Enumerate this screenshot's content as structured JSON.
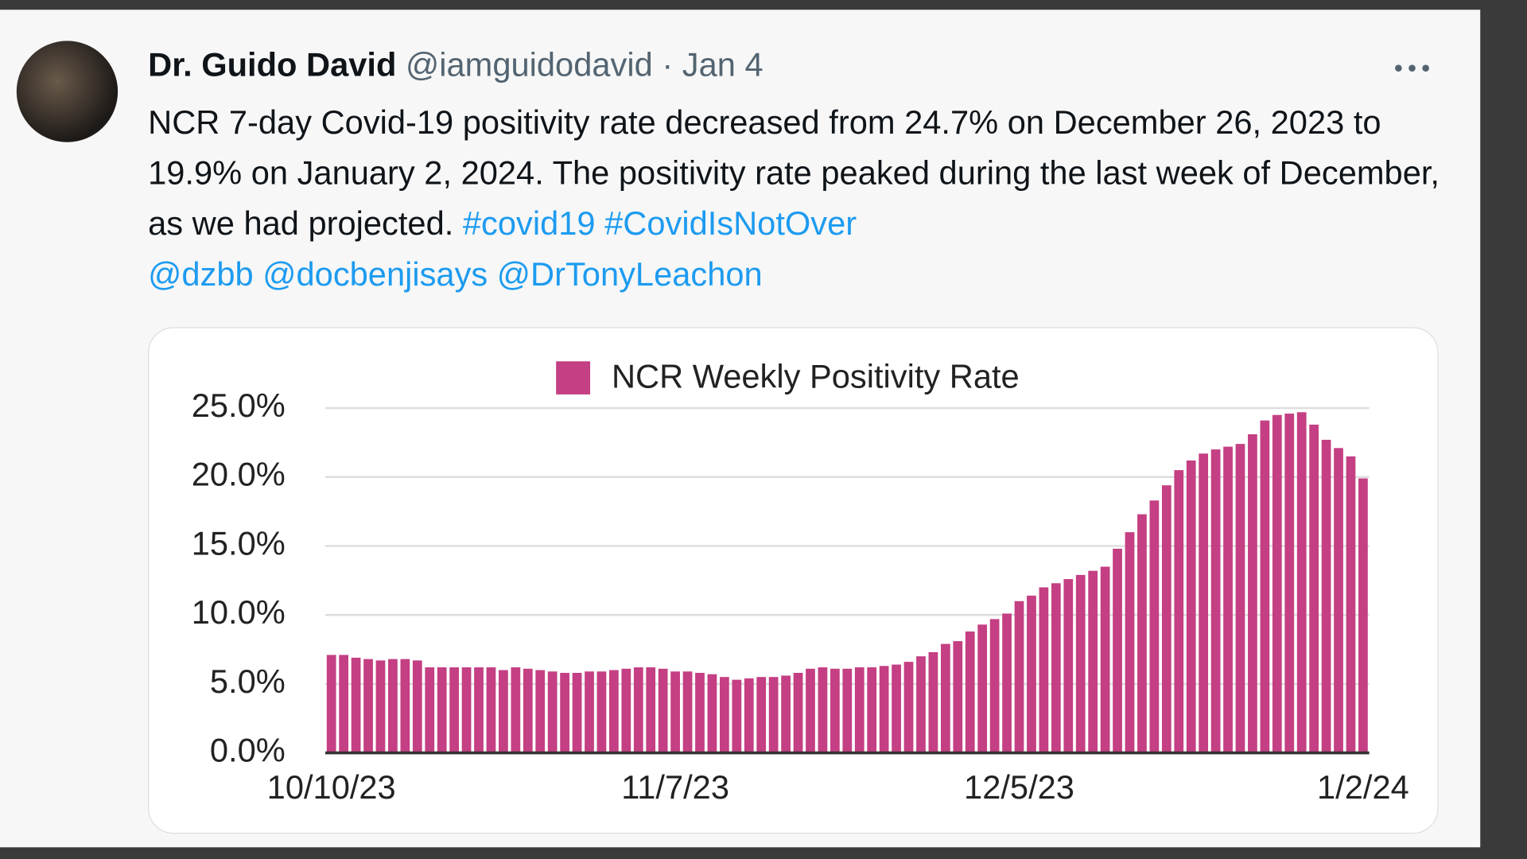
{
  "tweet": {
    "author": "Dr. Guido David",
    "handle": "@iamguidodavid",
    "separator": "·",
    "date": "Jan 4",
    "body": "NCR 7-day Covid-19 positivity rate decreased from 24.7% on December 26, 2023 to 19.9% on January 2, 2024. The positivity rate peaked during the last week of December, as we had projected.",
    "hashtags": [
      "#covid19",
      "#CovidIsNotOver"
    ],
    "mentions": [
      "@dzbb",
      "@docbenjisays",
      "@DrTonyLeachon"
    ]
  },
  "chart_data": {
    "type": "bar",
    "categories": [
      "10/10/23",
      null,
      null,
      null,
      null,
      null,
      null,
      null,
      null,
      null,
      null,
      null,
      null,
      null,
      null,
      null,
      null,
      null,
      null,
      null,
      null,
      null,
      null,
      null,
      null,
      null,
      null,
      null,
      "11/7/23",
      null,
      null,
      null,
      null,
      null,
      null,
      null,
      null,
      null,
      null,
      null,
      null,
      null,
      null,
      null,
      null,
      null,
      null,
      null,
      null,
      null,
      null,
      null,
      null,
      null,
      null,
      null,
      "12/5/23",
      null,
      null,
      null,
      null,
      null,
      null,
      null,
      null,
      null,
      null,
      null,
      null,
      null,
      null,
      null,
      null,
      null,
      null,
      null,
      null,
      null,
      null,
      null,
      null,
      null,
      null,
      null,
      "1/2/24"
    ],
    "series": [
      {
        "name": "NCR Weekly Positivity Rate",
        "color": "#c43f83",
        "values": [
          7.1,
          7.1,
          6.9,
          6.8,
          6.7,
          6.8,
          6.8,
          6.7,
          6.2,
          6.2,
          6.2,
          6.2,
          6.2,
          6.2,
          6.0,
          6.2,
          6.1,
          6.0,
          5.9,
          5.8,
          5.8,
          5.9,
          5.9,
          6.0,
          6.1,
          6.2,
          6.2,
          6.1,
          5.9,
          5.9,
          5.8,
          5.7,
          5.5,
          5.3,
          5.4,
          5.5,
          5.5,
          5.6,
          5.8,
          6.1,
          6.2,
          6.1,
          6.1,
          6.2,
          6.2,
          6.3,
          6.4,
          6.6,
          7.0,
          7.3,
          7.9,
          8.1,
          8.8,
          9.3,
          9.7,
          10.1,
          11.0,
          11.4,
          12.0,
          12.3,
          12.6,
          12.9,
          13.2,
          13.5,
          14.8,
          16.0,
          17.3,
          18.3,
          19.4,
          20.5,
          21.2,
          21.7,
          22.0,
          22.2,
          22.4,
          23.1,
          24.1,
          24.5,
          24.6,
          24.7,
          23.8,
          22.7,
          22.1,
          21.5,
          19.9
        ]
      }
    ],
    "ylim": [
      0,
      25
    ],
    "yticks": [
      {
        "value": 0,
        "label": "0.0%"
      },
      {
        "value": 5,
        "label": "5.0%"
      },
      {
        "value": 10,
        "label": "10.0%"
      },
      {
        "value": 15,
        "label": "15.0%"
      },
      {
        "value": 20,
        "label": "20.0%"
      },
      {
        "value": 25,
        "label": "25.0%"
      }
    ],
    "grid": true,
    "legend": "top"
  }
}
